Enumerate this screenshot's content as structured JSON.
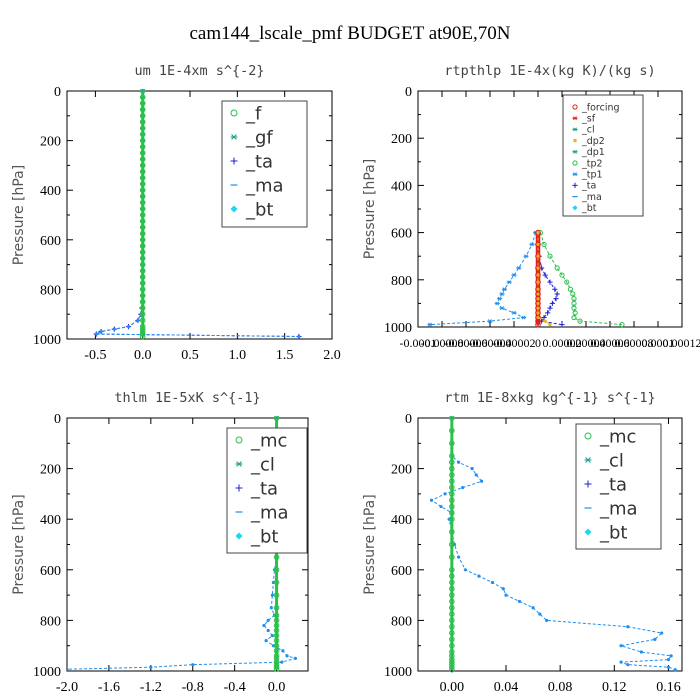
{
  "suptitle": "cam144_lscale_pmf  BUDGET at90E,70N",
  "chart_data": [
    {
      "type": "line",
      "title": "um  1E-4xm s^{-2}",
      "ylabel": "Pressure [hPa]",
      "xlim": [
        -0.8,
        2.0
      ],
      "ylim": [
        1000,
        0
      ],
      "x_ticks": [
        "-0.5",
        "0.0",
        "0.5",
        "1.0",
        "1.5",
        "2.0"
      ],
      "x_tick_values": [
        -0.5,
        0.0,
        0.5,
        1.0,
        1.5,
        2.0
      ],
      "y_ticks": [
        "0",
        "200",
        "400",
        "600",
        "800",
        "1000"
      ],
      "legend": [
        "_f",
        "_gf",
        "_ta",
        "_ma",
        "_bt"
      ],
      "legend_position": "upper-right",
      "p": [
        0,
        25,
        50,
        75,
        100,
        125,
        150,
        175,
        200,
        225,
        250,
        275,
        300,
        325,
        350,
        375,
        400,
        425,
        450,
        475,
        500,
        525,
        550,
        575,
        600,
        625,
        650,
        675,
        700,
        725,
        750,
        775,
        800,
        825,
        850,
        875,
        900,
        925,
        950,
        960,
        970,
        980,
        990
      ],
      "series": [
        {
          "name": "_ta",
          "color": "#1e22d0",
          "marker": "plus",
          "values": [
            0,
            0,
            0,
            0,
            0,
            0,
            0,
            0,
            0,
            0,
            0,
            0,
            0,
            0,
            0,
            0,
            0,
            0,
            0,
            0,
            0,
            0,
            0,
            0,
            0,
            0,
            0,
            0,
            0,
            0,
            0,
            0,
            0,
            0,
            0,
            -0.01,
            -0.02,
            -0.05,
            -0.15,
            -0.3,
            -0.44,
            -0.49,
            1.65
          ]
        },
        {
          "name": "_bt",
          "color": "#1f8ff2",
          "marker": "dot",
          "values": [
            0,
            0,
            0,
            0,
            0,
            0,
            0,
            0,
            0,
            0,
            0,
            0,
            0,
            0,
            0,
            0,
            0,
            0,
            0,
            0,
            0,
            0,
            0,
            0,
            0,
            0,
            0,
            0,
            0,
            0,
            0,
            0,
            0,
            0,
            0,
            -0.01,
            -0.02,
            -0.05,
            -0.15,
            -0.3,
            -0.44,
            -0.49,
            1.65
          ]
        },
        {
          "name": "_f",
          "color": "#2ac04a",
          "marker": "circle",
          "values": [
            0,
            0,
            0,
            0,
            0,
            0,
            0,
            0,
            0,
            0,
            0,
            0,
            0,
            0,
            0,
            0,
            0,
            0,
            0,
            0,
            0,
            0,
            0,
            0,
            0,
            0,
            0,
            0,
            0,
            0,
            0,
            0,
            0,
            0,
            0,
            0,
            0,
            0,
            0,
            0,
            0,
            0,
            0
          ]
        }
      ]
    },
    {
      "type": "line",
      "title": "rtpthlp  1E-4x(kg K)/(kg s)",
      "ylabel": "Pressure [hPa]",
      "xlim": [
        -0.0001,
        0.00012
      ],
      "ylim": [
        1000,
        0
      ],
      "x_ticks": [
        "-0.0001",
        "-0.00008",
        "-0.00006",
        "-0.00004",
        "-0.00002",
        "0",
        "0.00002",
        "0.00004",
        "0.00006",
        "0.00008",
        "0.0001",
        "0.00012"
      ],
      "x_tick_values": [
        -0.0001,
        -8e-05,
        -6e-05,
        -4e-05,
        -2e-05,
        0,
        2e-05,
        4e-05,
        6e-05,
        8e-05,
        0.0001,
        0.00012
      ],
      "y_ticks": [
        "0",
        "200",
        "400",
        "600",
        "800",
        "1000"
      ],
      "legend": [
        "_forcing",
        "_sf",
        "_cl",
        "_dp2",
        "_dp1",
        "_tp2",
        "_tp1",
        "_ta",
        "_ma",
        "_bt"
      ],
      "legend_position": "upper-right",
      "p": [
        600,
        650,
        700,
        750,
        780,
        810,
        840,
        860,
        880,
        900,
        920,
        940,
        960,
        975,
        990
      ],
      "series": [
        {
          "name": "_tp2",
          "color": "#2ac04a",
          "marker": "circle",
          "values": [
            2e-06,
            5e-06,
            1e-05,
            1.6e-05,
            2e-05,
            2.4e-05,
            2.7e-05,
            2.9e-05,
            3e-05,
            3e-05,
            3e-05,
            3.1e-05,
            3e-05,
            3.5e-05,
            7e-05
          ]
        },
        {
          "name": "_tp1",
          "color": "#1f8ff2",
          "marker": "cross",
          "values": [
            -2e-06,
            -5e-06,
            -1e-05,
            -1.6e-05,
            -2e-05,
            -2.4e-05,
            -2.8e-05,
            -3e-05,
            -3.2e-05,
            -3.4e-05,
            -3e-05,
            -2e-05,
            -1.2e-05,
            -4e-05,
            -9e-05
          ]
        },
        {
          "name": "_ta",
          "color": "#1e22d0",
          "marker": "plus",
          "values": [
            0,
            0,
            1e-06,
            3e-06,
            6e-06,
            1e-05,
            1.4e-05,
            1.6e-05,
            1.5e-05,
            1.2e-05,
            1e-05,
            8e-06,
            5e-06,
            3e-06,
            2e-05
          ]
        },
        {
          "name": "_forcing",
          "color": "#e02020",
          "marker": "circle",
          "values": [
            0,
            0,
            0,
            0,
            0,
            0,
            0,
            0,
            0,
            0,
            0,
            0,
            0,
            0,
            0
          ]
        },
        {
          "name": "_cl",
          "color": "#f0b020",
          "marker": "dot",
          "values": [
            0,
            0,
            0,
            0,
            0,
            0,
            0,
            0,
            0,
            0,
            0,
            0,
            0,
            6e-06,
            1e-05
          ]
        }
      ]
    },
    {
      "type": "line",
      "title": "thlm  1E-5xK s^{-1}",
      "ylabel": "Pressure [hPa]",
      "xlim": [
        -2.0,
        0.3
      ],
      "ylim": [
        1000,
        0
      ],
      "x_ticks": [
        "-2.0",
        "-1.6",
        "-1.2",
        "-0.8",
        "-0.4",
        "0.0"
      ],
      "x_tick_values": [
        -2.0,
        -1.6,
        -1.2,
        -0.8,
        -0.4,
        0.0
      ],
      "y_ticks": [
        "0",
        "200",
        "400",
        "600",
        "800",
        "1000"
      ],
      "legend": [
        "_mc",
        "_cl",
        "_ta",
        "_ma",
        "_bt"
      ],
      "legend_position": "upper-right",
      "p": [
        0,
        50,
        100,
        150,
        175,
        200,
        225,
        250,
        300,
        350,
        400,
        450,
        500,
        550,
        600,
        650,
        700,
        750,
        780,
        800,
        820,
        840,
        860,
        880,
        900,
        920,
        940,
        950,
        965,
        975,
        985,
        993
      ],
      "series": [
        {
          "name": "_bt",
          "color": "#1f8ff2",
          "marker": "dot",
          "values": [
            0,
            0,
            0,
            0.01,
            0.04,
            0.05,
            0.03,
            0.01,
            0,
            -0.01,
            0,
            -0.02,
            -0.01,
            0,
            -0.02,
            -0.03,
            -0.04,
            -0.05,
            -0.02,
            -0.08,
            -0.12,
            -0.08,
            -0.04,
            -0.1,
            -0.03,
            0.06,
            0.1,
            0.18,
            0.05,
            -0.8,
            -1.2,
            -2.0
          ]
        },
        {
          "name": "_mc",
          "color": "#2ac04a",
          "marker": "circle",
          "values": [
            0,
            0,
            0,
            0,
            0,
            0,
            0,
            0,
            0,
            0,
            0,
            0,
            0,
            0,
            0,
            0,
            0,
            0,
            0,
            0,
            0,
            0,
            0,
            0,
            0,
            0,
            0,
            0,
            0,
            0,
            0,
            0
          ]
        }
      ]
    },
    {
      "type": "line",
      "title": "rtm  1E-8xkg kg^{-1} s^{-1}",
      "ylabel": "Pressure [hPa]",
      "xlim": [
        -0.025,
        0.17
      ],
      "ylim": [
        1000,
        0
      ],
      "x_ticks": [
        "0.00",
        "0.04",
        "0.08",
        "0.12",
        "0.16"
      ],
      "x_tick_values": [
        0.0,
        0.04,
        0.08,
        0.12,
        0.16
      ],
      "y_ticks": [
        "0",
        "200",
        "400",
        "600",
        "800",
        "1000"
      ],
      "legend": [
        "_mc",
        "_cl",
        "_ta",
        "_ma",
        "_bt"
      ],
      "legend_position": "upper-right",
      "p": [
        0,
        50,
        100,
        150,
        175,
        200,
        225,
        250,
        275,
        300,
        325,
        350,
        375,
        400,
        450,
        500,
        550,
        600,
        625,
        650,
        675,
        700,
        725,
        750,
        775,
        800,
        825,
        850,
        875,
        900,
        925,
        940,
        955,
        965,
        975,
        985,
        995
      ],
      "series": [
        {
          "name": "_bt",
          "color": "#1f8ff2",
          "marker": "dot",
          "values": [
            0,
            0,
            0,
            0,
            0.005,
            0.015,
            0.018,
            0.022,
            0.008,
            -0.005,
            -0.015,
            -0.008,
            0,
            -0.002,
            0,
            0.002,
            0.005,
            0.01,
            0.02,
            0.03,
            0.038,
            0.04,
            0.05,
            0.06,
            0.065,
            0.07,
            0.13,
            0.155,
            0.15,
            0.125,
            0.14,
            0.162,
            0.16,
            0.125,
            0.13,
            0.16,
            0.165
          ]
        },
        {
          "name": "_mc",
          "color": "#2ac04a",
          "marker": "circle",
          "values": [
            0,
            0,
            0,
            0,
            0,
            0,
            0,
            0,
            0,
            0,
            0,
            0,
            0,
            0,
            0,
            0,
            0,
            0,
            0,
            0,
            0,
            0,
            0,
            0,
            0,
            0,
            0,
            0,
            0,
            0,
            0,
            0,
            0,
            0,
            0,
            0,
            0
          ]
        }
      ]
    }
  ]
}
